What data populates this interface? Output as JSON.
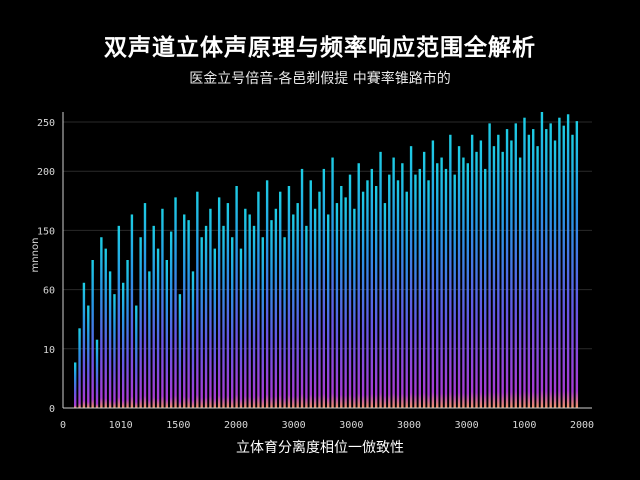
{
  "chart_data": {
    "type": "bar",
    "title": "双声道立体声原理与频率响应范围全解析",
    "subtitle": "医金立号倍音-各邑剃假提 中賽率锥路市的",
    "xlabel": "立体育分离度相位一倣致性",
    "ylabel": "mnnon",
    "x_ticks": [
      "0",
      "1010",
      "1500",
      "2000",
      "3000",
      "3000",
      "3000",
      "3000",
      "1000",
      "2000"
    ],
    "y_ticks": [
      "0",
      "10",
      "60",
      "150",
      "200",
      "250"
    ],
    "ylim": [
      0,
      260
    ],
    "grid": true,
    "colors": {
      "bar_top": "#1fd8f0",
      "bar_mid": "#3a7cf0",
      "bar_bottom": "#b040e0",
      "base_glow": "#ff9e6a"
    },
    "series": [
      {
        "values": [
          40,
          70,
          110,
          90,
          130,
          60,
          150,
          140,
          120,
          100,
          160,
          110,
          130,
          170,
          90,
          150,
          180,
          120,
          160,
          140,
          175,
          130,
          155,
          185,
          100,
          170,
          165,
          120,
          190,
          150,
          160,
          175,
          140,
          185,
          160,
          180,
          150,
          195,
          140,
          175,
          170,
          160,
          190,
          150,
          200,
          165,
          175,
          190,
          150,
          195,
          170,
          180,
          210,
          160,
          200,
          175,
          190,
          210,
          170,
          220,
          180,
          195,
          185,
          205,
          175,
          215,
          190,
          200,
          210,
          195,
          225,
          180,
          205,
          220,
          200,
          215,
          190,
          230,
          205,
          210,
          225,
          200,
          235,
          215,
          220,
          210,
          240,
          205,
          230,
          220,
          215,
          240,
          225,
          235,
          210,
          250,
          230,
          240,
          225,
          245,
          235,
          250,
          220,
          255,
          240,
          245,
          230,
          260,
          245,
          250,
          235,
          255,
          248,
          258,
          240,
          252
        ]
      }
    ]
  }
}
